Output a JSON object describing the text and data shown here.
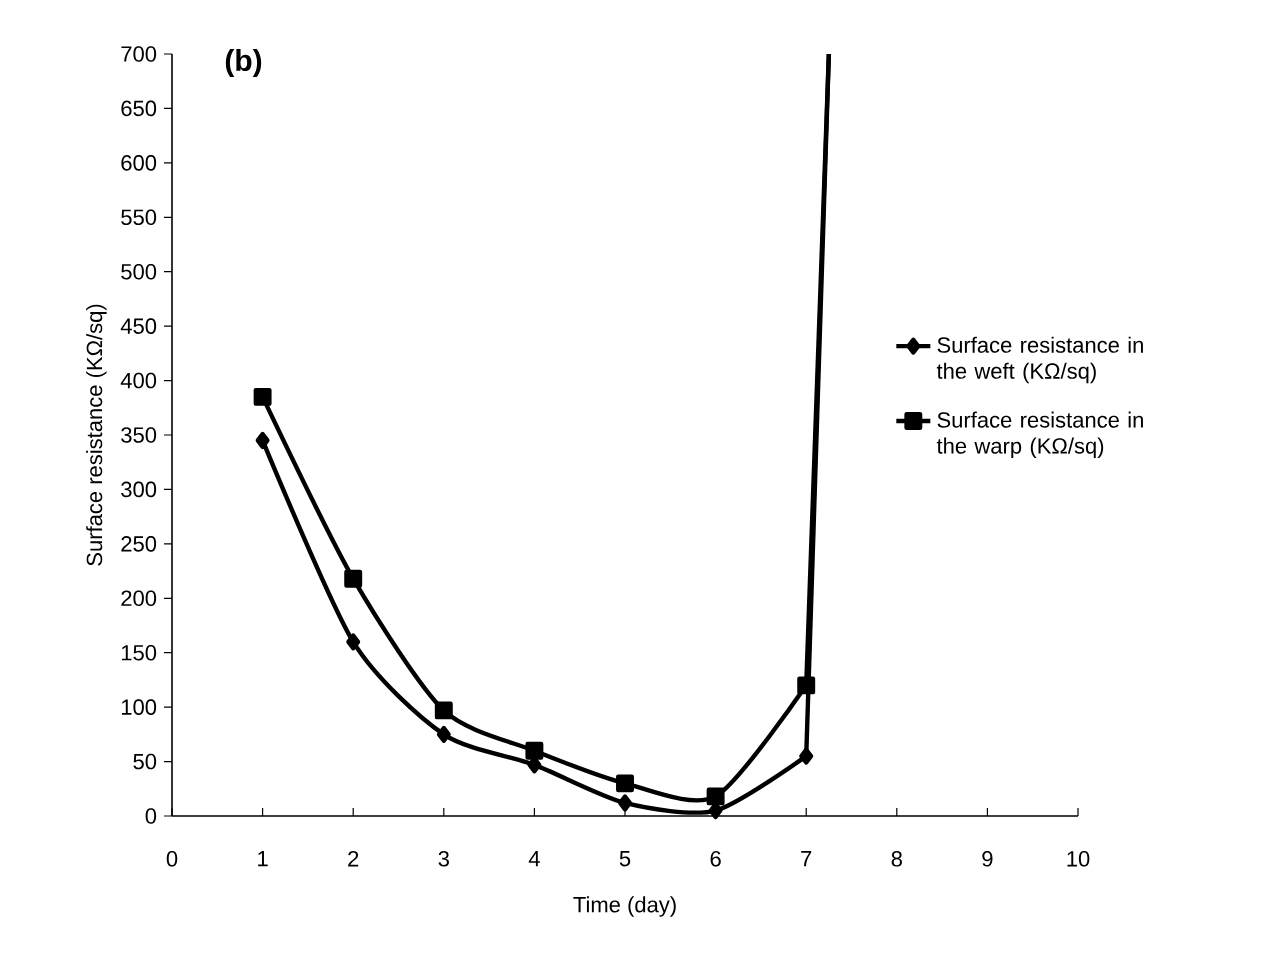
{
  "chart_data": {
    "type": "line",
    "title": "(b)",
    "xlabel": "Time (day)",
    "ylabel": "Surface resistance (KΩ/sq)",
    "xlim": [
      0,
      10
    ],
    "xticks": [
      0,
      1,
      2,
      3,
      4,
      5,
      6,
      7,
      8,
      9,
      10
    ],
    "ylim": [
      0,
      700
    ],
    "yticks": [
      0,
      50,
      100,
      150,
      200,
      250,
      300,
      350,
      400,
      450,
      500,
      550,
      600,
      650,
      700
    ],
    "grid": false,
    "legend": "right",
    "series": [
      {
        "name": "Surface resistance in the weft (KΩ/sq)",
        "color": "#000000",
        "marker": "diamond",
        "x": [
          1,
          2,
          3,
          4,
          5,
          6,
          7
        ],
        "values": [
          345,
          160,
          75,
          47,
          12,
          5,
          55
        ]
      },
      {
        "name": "Surface resistance in the warp (KΩ/sq)",
        "color": "#000000",
        "marker": "square",
        "x": [
          1,
          2,
          3,
          4,
          5,
          6,
          7
        ],
        "values": [
          385,
          218,
          97,
          60,
          30,
          18,
          120
        ]
      },
      {
        "color": "#000000",
        "marker": "none",
        "x": [
          7,
          7.25
        ],
        "values": [
          55,
          700
        ]
      },
      {
        "color": "#000000",
        "marker": "none",
        "x": [
          7,
          7.25
        ],
        "values": [
          120,
          700
        ]
      }
    ]
  }
}
